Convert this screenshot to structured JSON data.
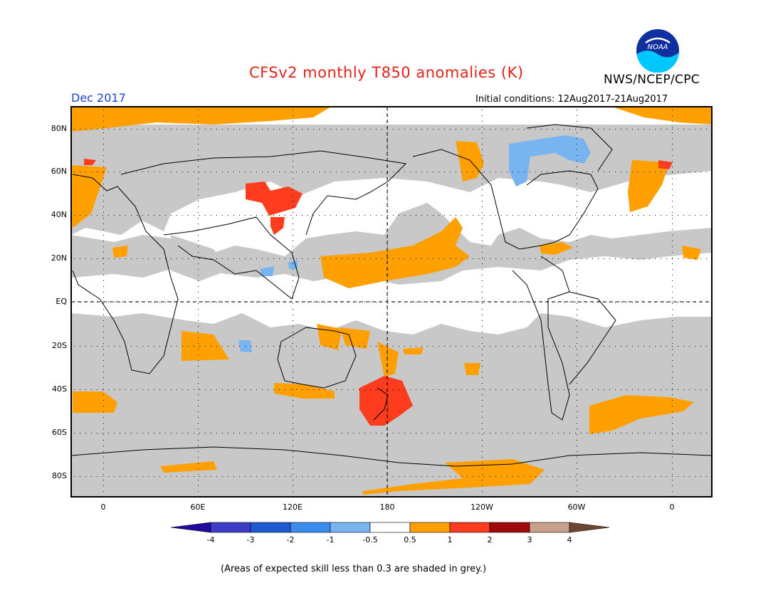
{
  "title": "CFSv2 monthly T850 anomalies (K)",
  "organization": "NWS/NCEP/CPC",
  "logo_text": "NOAA",
  "month": "Dec 2017",
  "initial_conditions": "Initial conditions: 12Aug2017-21Aug2017",
  "footnote": "(Areas of expected skill less than 0.3 are shaded in grey.)",
  "lat_labels": [
    "80N",
    "60N",
    "40N",
    "20N",
    "EQ",
    "20S",
    "40S",
    "60S",
    "80S"
  ],
  "lon_labels": [
    "0",
    "60E",
    "120E",
    "180",
    "120W",
    "60W",
    "0"
  ],
  "colorbar": {
    "labels": [
      "-4",
      "-3",
      "-2",
      "-1",
      "-0.5",
      "0.5",
      "1",
      "2",
      "3",
      "4"
    ],
    "colors": [
      "#1e0a9e",
      "#3c3cc8",
      "#1e5ad2",
      "#3c8cf0",
      "#78b4f0",
      "#ffffff",
      "#ffa000",
      "#ff3c1e",
      "#a00a0a",
      "#c8a08c",
      "#6e4632"
    ]
  },
  "colors": {
    "skill_grey": "#c8c8c8",
    "warm_1": "#ffa000",
    "warm_2": "#ff3c1e",
    "cool_1": "#78b4f0",
    "title_red": "#e2231a",
    "month_blue": "#1a44cc"
  }
}
